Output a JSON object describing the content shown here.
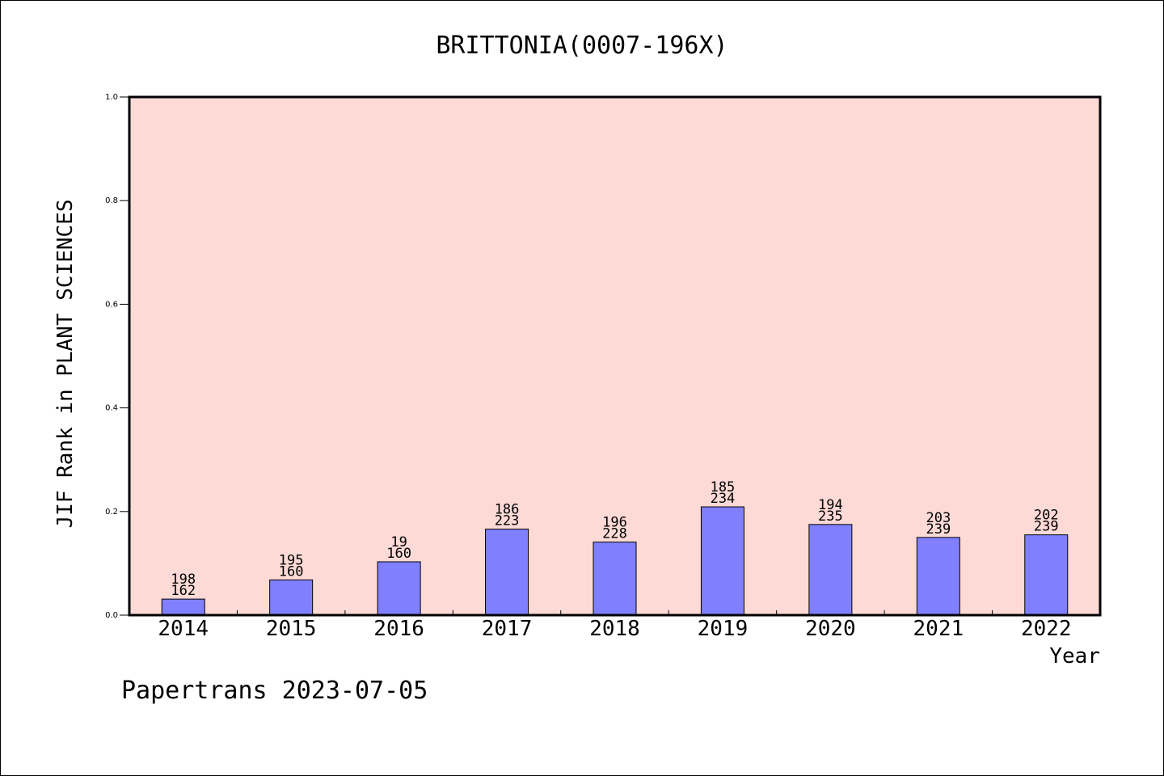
{
  "chart_data": {
    "type": "bar",
    "title": "BRITTONIA(0007-196X)",
    "xlabel": "Year",
    "ylabel": "JIF Rank in PLANT SCIENCES",
    "ylim": [
      0,
      1.0
    ],
    "yticks": [
      "0.0",
      "0.2",
      "0.4",
      "0.6",
      "0.8",
      "1.0"
    ],
    "ytick_values": [
      0,
      0.2,
      0.4,
      0.6,
      0.8,
      1.0
    ],
    "grid": false,
    "categories": [
      "2014",
      "2015",
      "2016",
      "2017",
      "2018",
      "2019",
      "2020",
      "2021",
      "2022"
    ],
    "values": [
      0.031,
      0.068,
      0.103,
      0.166,
      0.141,
      0.209,
      0.175,
      0.15,
      0.155
    ],
    "labels_top": [
      "198",
      "195",
      "19",
      "186",
      "196",
      "185",
      "194",
      "203",
      "202"
    ],
    "labels_bottom": [
      "162",
      "160",
      "160",
      "223",
      "228",
      "234",
      "235",
      "239",
      "239"
    ],
    "colors": {
      "plot_bg": "#fddad6",
      "bar": "#8080ff"
    }
  },
  "footer": {
    "watermark": "Papertrans 2023-07-05"
  }
}
